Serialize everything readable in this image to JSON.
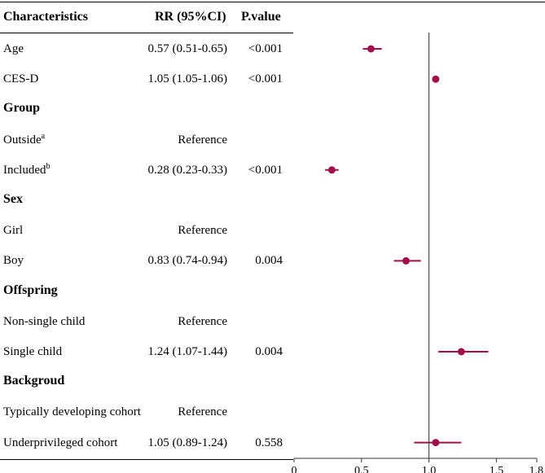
{
  "chart_data": {
    "type": "forest",
    "headers": {
      "characteristics": "Characteristics",
      "rr": "RR (95%CI)",
      "p": "P.value"
    },
    "rows": [
      {
        "kind": "item",
        "label": "Age",
        "sup": "",
        "rr_text": "0.57 (0.51-0.65)",
        "p": "<0.001",
        "est": 0.57,
        "lo": 0.51,
        "hi": 0.65
      },
      {
        "kind": "item",
        "label": "CES-D",
        "sup": "",
        "rr_text": "1.05 (1.05-1.06)",
        "p": "<0.001",
        "est": 1.05,
        "lo": 1.05,
        "hi": 1.06
      },
      {
        "kind": "section",
        "label": "Group"
      },
      {
        "kind": "item",
        "label": "Outside",
        "sup": "a",
        "rr_text": "Reference",
        "p": ""
      },
      {
        "kind": "item",
        "label": "Included",
        "sup": "b",
        "rr_text": "0.28 (0.23-0.33)",
        "p": "<0.001",
        "est": 0.28,
        "lo": 0.23,
        "hi": 0.33
      },
      {
        "kind": "section",
        "label": "Sex"
      },
      {
        "kind": "item",
        "label": "Girl",
        "sup": "",
        "rr_text": "Reference",
        "p": ""
      },
      {
        "kind": "item",
        "label": "Boy",
        "sup": "",
        "rr_text": "0.83 (0.74-0.94)",
        "p": "0.004",
        "est": 0.83,
        "lo": 0.74,
        "hi": 0.94
      },
      {
        "kind": "section",
        "label": "Offspring"
      },
      {
        "kind": "item",
        "label": "Non-single child",
        "sup": "",
        "rr_text": "Reference",
        "p": ""
      },
      {
        "kind": "item",
        "label": "Single child",
        "sup": "",
        "rr_text": "1.24 (1.07-1.44)",
        "p": "0.004",
        "est": 1.24,
        "lo": 1.07,
        "hi": 1.44
      },
      {
        "kind": "section",
        "label": "Backgroud"
      },
      {
        "kind": "item",
        "label": "Typically developing cohort",
        "sup": "",
        "rr_text": "Reference",
        "p": ""
      },
      {
        "kind": "item",
        "label": "Underprivileged cohort",
        "sup": "",
        "rr_text": "1.05 (0.89-1.24)",
        "p": "0.558",
        "est": 1.05,
        "lo": 0.89,
        "hi": 1.24
      }
    ],
    "x_ticks": [
      0,
      0.5,
      1.0,
      1.5,
      1.8
    ],
    "x_tick_labels": [
      "0",
      "0.5",
      "1.0",
      "1.5",
      "1.8"
    ],
    "xlim": [
      0,
      1.8
    ],
    "reference_line": 1.0,
    "point_color": "#A0104A",
    "xlabel": "",
    "ylabel": "",
    "title": ""
  }
}
